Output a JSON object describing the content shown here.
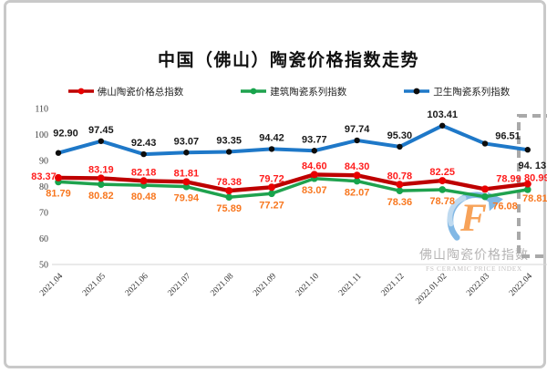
{
  "watermark": {
    "line1": "佛山陶瓷价格指数",
    "line2": "FS CERAMIC PRICE INDEX",
    "logo_letter": "F",
    "logo_arrow_color": "#57A0DC",
    "logo_letter_color": "#F5821F"
  },
  "chart_data": {
    "type": "line",
    "title": "中国（佛山）陶瓷价格指数走势",
    "categories": [
      "2021.04",
      "2021.05",
      "2021.06",
      "2021.07",
      "2021.08",
      "2021.09",
      "2021.10",
      "2021.11",
      "2021.12",
      "2022.01-02",
      "2022.03",
      "2022.04"
    ],
    "series": [
      {
        "name": "佛山陶瓷价格总指数",
        "color": "#BE0000",
        "marker_color": "#E80000",
        "label_color": "#FF1D1D",
        "values": [
          83.37,
          83.19,
          82.18,
          81.81,
          78.38,
          79.72,
          84.6,
          84.3,
          80.78,
          82.25,
          78.99,
          80.99
        ],
        "labels": [
          "83.37",
          "83.19",
          "82.18",
          "81.81",
          "78.38",
          "79.72",
          "84.60",
          "84.30",
          "80.78",
          "82.25",
          "78.99",
          "80.99"
        ]
      },
      {
        "name": "建筑陶瓷系列指数",
        "color": "#1FA24E",
        "marker_color": "#17A44C",
        "label_color": "#F8771F",
        "values": [
          81.79,
          80.82,
          80.48,
          79.94,
          75.89,
          77.27,
          83.07,
          82.07,
          78.36,
          78.78,
          76.08,
          78.81
        ],
        "labels": [
          "81.79",
          "80.82",
          "80.48",
          "79.94",
          "75.89",
          "77.27",
          "83.07",
          "82.07",
          "78.36",
          "78.78",
          "76.08",
          "78.81"
        ]
      },
      {
        "name": "卫生陶瓷系列指数",
        "color": "#1E78C8",
        "marker_color": "#0d0d0d",
        "label_color": "#1a1a1a",
        "values": [
          92.9,
          97.45,
          92.43,
          93.07,
          93.35,
          94.42,
          93.77,
          97.74,
          95.3,
          103.41,
          96.51,
          94.13
        ],
        "labels": [
          "92.90",
          "97.45",
          "92.43",
          "93.07",
          "93.35",
          "94.42",
          "93.77",
          "97.74",
          "95.30",
          "103.41",
          "96.51",
          "94. 13"
        ]
      }
    ],
    "ylim": [
      50,
      110
    ],
    "yticks": [
      110,
      100,
      90,
      80,
      70,
      60,
      50
    ],
    "grid": false,
    "legend_position": "top-center",
    "highlight": {
      "type": "dashed-box",
      "target": "last-category",
      "color": "#a9a9a9"
    }
  }
}
